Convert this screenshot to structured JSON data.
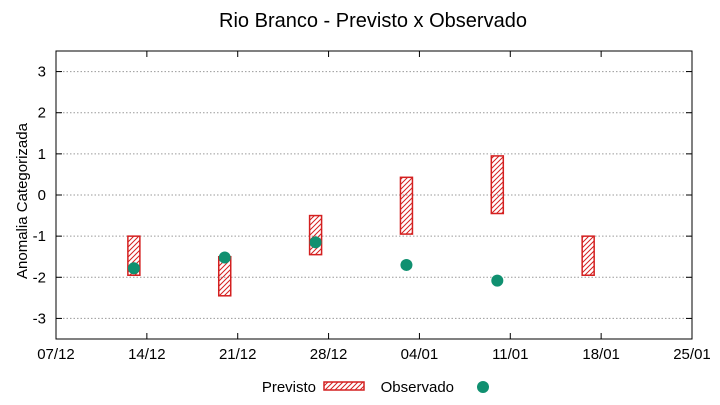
{
  "chart_data": {
    "type": "scatter",
    "title": "Rio Branco - Previsto x Observado",
    "xlabel": "",
    "ylabel": "Anomalia Categorizada",
    "x_tick_labels": [
      "07/12",
      "14/12",
      "21/12",
      "28/12",
      "04/01",
      "11/01",
      "18/01",
      "25/01"
    ],
    "xlim": [
      "07/12",
      "25/01"
    ],
    "ylim": [
      -3.5,
      3.5
    ],
    "y_ticks": [
      -3,
      -2,
      -1,
      0,
      1,
      2,
      3
    ],
    "grid": true,
    "legend_position": "bottom-center",
    "series": [
      {
        "name": "Previsto",
        "kind": "range-box",
        "color": "#d42020",
        "pattern": "diagonal-hatch",
        "points": [
          {
            "x": "13/12",
            "low": -1.95,
            "high": -1.0
          },
          {
            "x": "20/12",
            "low": -2.45,
            "high": -1.5
          },
          {
            "x": "27/12",
            "low": -1.45,
            "high": -0.5
          },
          {
            "x": "03/01",
            "low": -0.95,
            "high": 0.43
          },
          {
            "x": "10/01",
            "low": -0.45,
            "high": 0.95
          },
          {
            "x": "17/01",
            "low": -1.95,
            "high": -1.0
          }
        ]
      },
      {
        "name": "Observado",
        "kind": "point",
        "color": "#109070",
        "points": [
          {
            "x": "13/12",
            "y": -1.78
          },
          {
            "x": "20/12",
            "y": -1.52
          },
          {
            "x": "27/12",
            "y": -1.15
          },
          {
            "x": "03/01",
            "y": -1.7
          },
          {
            "x": "10/01",
            "y": -2.08
          }
        ]
      }
    ]
  }
}
